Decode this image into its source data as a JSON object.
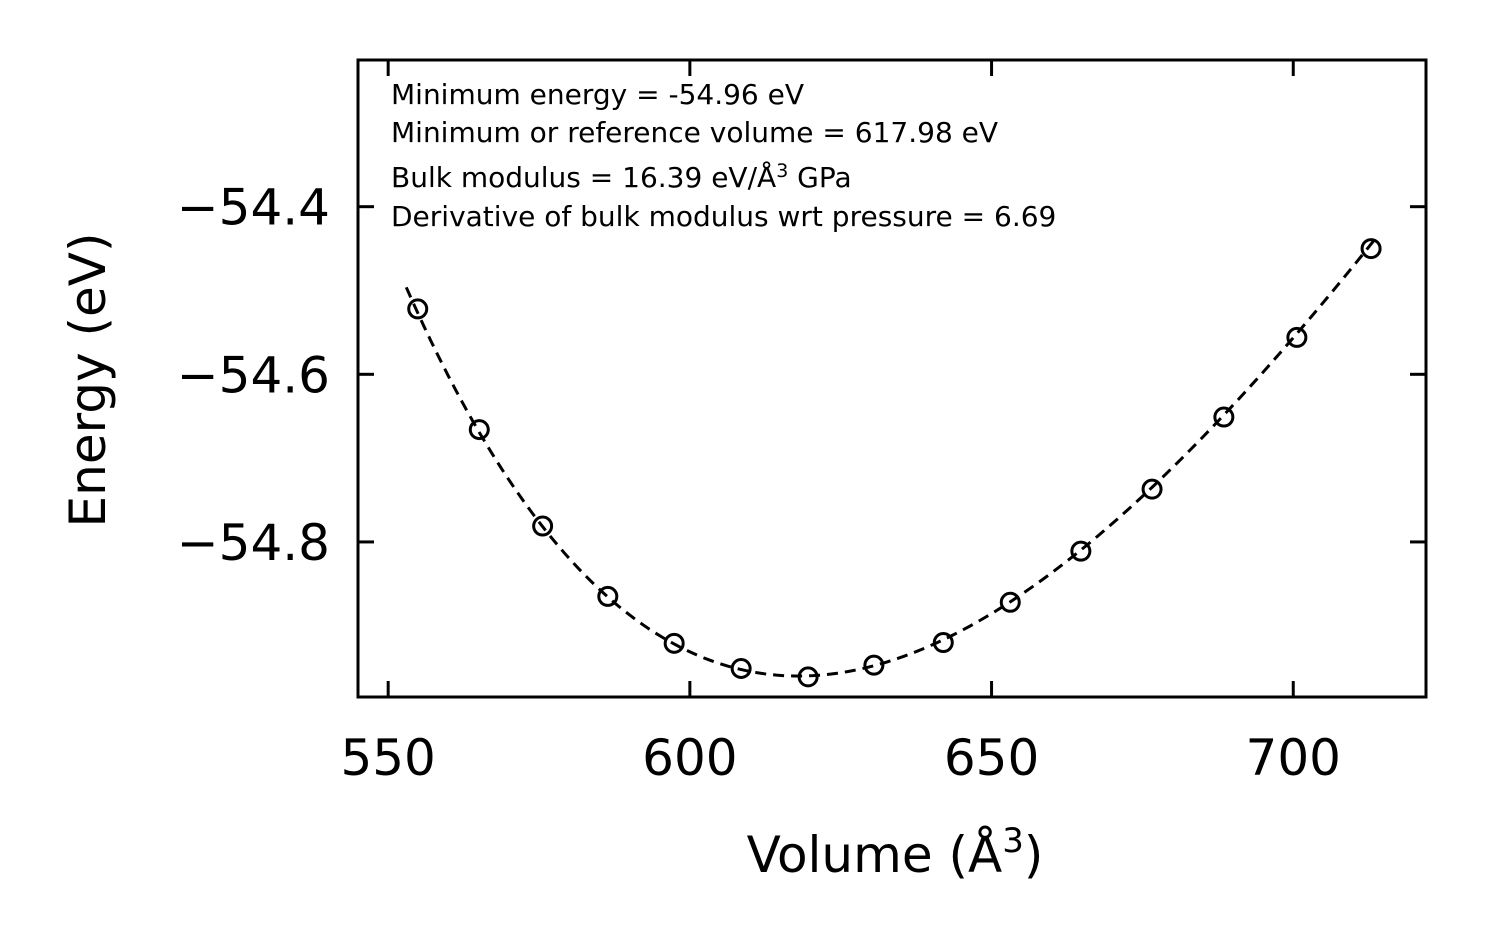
{
  "chart_data": {
    "type": "scatter",
    "title": "",
    "xlabel": "Volume (Å",
    "xlabel_sup": "3",
    "xlabel_end": ")",
    "ylabel": "Energy (eV)",
    "xlim": [
      545,
      722
    ],
    "ylim": [
      -54.985,
      -54.225
    ],
    "xticks": [
      550,
      600,
      650,
      700
    ],
    "xtick_labels": [
      "550",
      "600",
      "650",
      "700"
    ],
    "yticks": [
      -54.4,
      -54.6,
      -54.8
    ],
    "ytick_labels": [
      "−54.4",
      "−54.6",
      "−54.8"
    ],
    "grid": false,
    "series": [
      {
        "name": "data",
        "style": "open-circle",
        "x": [
          554.9,
          565.1,
          575.6,
          586.4,
          597.4,
          608.5,
          619.6,
          630.5,
          642.0,
          653.1,
          664.8,
          676.6,
          688.5,
          700.6,
          712.9
        ],
        "y": [
          -54.522,
          -54.666,
          -54.781,
          -54.865,
          -54.921,
          -54.951,
          -54.961,
          -54.947,
          -54.92,
          -54.872,
          -54.811,
          -54.737,
          -54.651,
          -54.556,
          -54.45
        ]
      },
      {
        "name": "fit",
        "style": "dashed-line",
        "E0": -54.96,
        "V0": 617.98,
        "B": 16.39,
        "Bp": 6.69,
        "x_range": [
          553,
          714
        ]
      }
    ],
    "annotations": [
      "Minimum energy = -54.96 eV",
      "Minimum or reference volume = 617.98 eV",
      "Bulk modulus = 16.39 eV/Å",
      "3",
      " GPa",
      "Derivative of bulk modulus wrt pressure = 6.69"
    ]
  }
}
